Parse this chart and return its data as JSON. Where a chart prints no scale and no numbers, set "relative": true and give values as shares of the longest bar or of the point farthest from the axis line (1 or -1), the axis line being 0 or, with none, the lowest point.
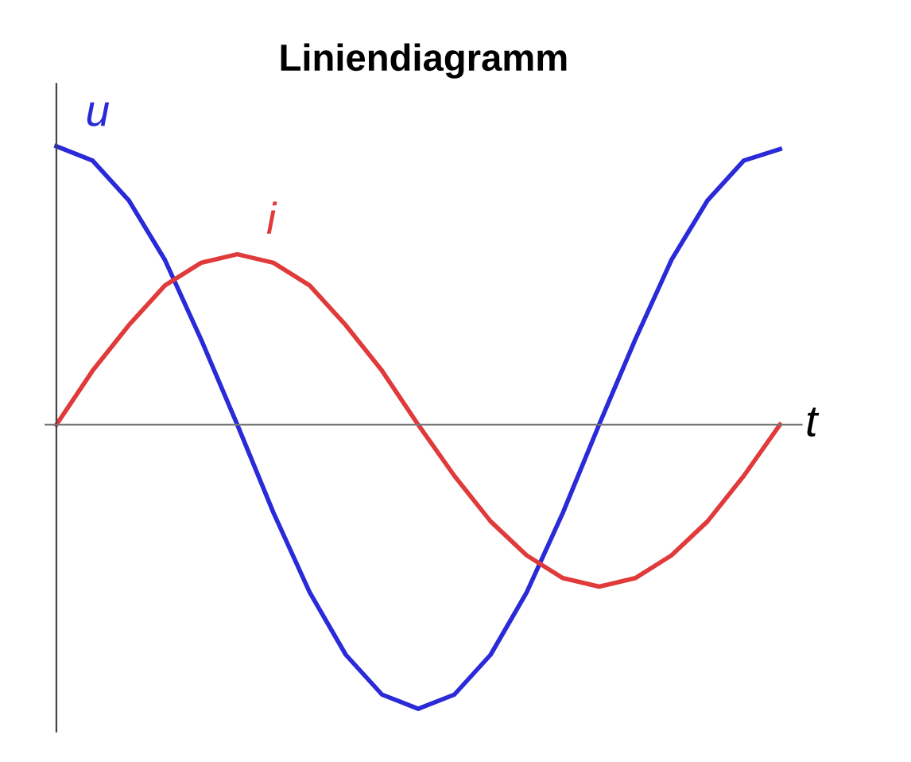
{
  "chart_data": {
    "type": "line",
    "title": "Liniendiagramm",
    "xlabel": "t",
    "relative": true,
    "categories": [
      null,
      null,
      null,
      null,
      null,
      null,
      null,
      null,
      null,
      null,
      null,
      null,
      null,
      null,
      null,
      null,
      null,
      null,
      null,
      null,
      null
    ],
    "series": [
      {
        "name": "u",
        "color": "#2a2ad8",
        "values": [
          0.98,
          0.93,
          0.79,
          0.58,
          0.3,
          0,
          -0.31,
          -0.59,
          -0.81,
          -0.95,
          -1,
          -0.95,
          -0.81,
          -0.59,
          -0.31,
          0,
          0.3,
          0.58,
          0.79,
          0.93,
          0.97
        ]
      },
      {
        "name": "i",
        "color": "#e03a3a",
        "values": [
          0,
          0.19,
          0.35,
          0.49,
          0.57,
          0.6,
          0.57,
          0.49,
          0.35,
          0.19,
          0,
          -0.18,
          -0.34,
          -0.46,
          -0.54,
          -0.57,
          -0.54,
          -0.46,
          -0.34,
          -0.18,
          0
        ]
      }
    ],
    "legend": false,
    "marker": "none",
    "line_style": "solid"
  }
}
